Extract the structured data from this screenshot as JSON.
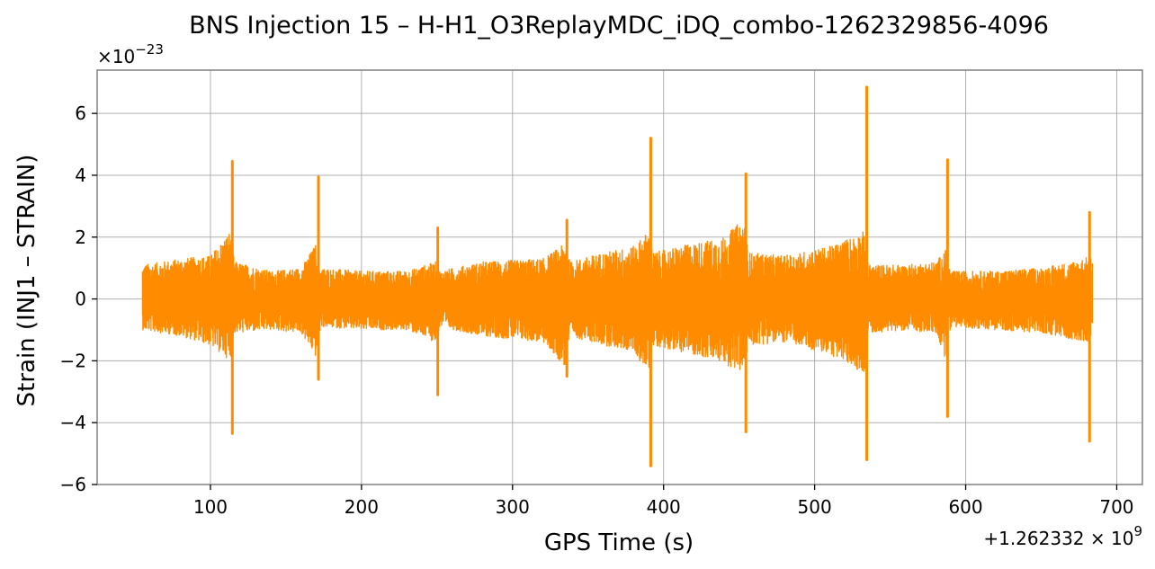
{
  "chart_data": {
    "type": "line",
    "title": "BNS Injection 15 – H-H1_O3ReplayMDC_iDQ_combo-1262329856-4096",
    "xlabel": "GPS Time (s)",
    "ylabel": "Strain (INJ1 – STRAIN)",
    "x_offset_base": "+1.262332",
    "x_offset_exp": "9",
    "y_scale_base": "×10",
    "y_scale_exp": "−23",
    "xlim": [
      25,
      717
    ],
    "ylim": [
      -6,
      7.4
    ],
    "grid": true,
    "x_ticks": [
      {
        "value": 100,
        "label": "100"
      },
      {
        "value": 200,
        "label": "200"
      },
      {
        "value": 300,
        "label": "300"
      },
      {
        "value": 400,
        "label": "400"
      },
      {
        "value": 500,
        "label": "500"
      },
      {
        "value": 600,
        "label": "600"
      },
      {
        "value": 700,
        "label": "700"
      }
    ],
    "y_ticks": [
      {
        "value": -6,
        "label": "−6"
      },
      {
        "value": -4,
        "label": "−4"
      },
      {
        "value": -2,
        "label": "−2"
      },
      {
        "value": 0,
        "label": "0"
      },
      {
        "value": 2,
        "label": "2"
      },
      {
        "value": 4,
        "label": "4"
      },
      {
        "value": 6,
        "label": "6"
      }
    ],
    "series": [
      {
        "color": "#ff8c00",
        "x_range": [
          55,
          684
        ],
        "noise_envelope": {
          "x": [
            55,
            80,
            100,
            113,
            116,
            140,
            160,
            170,
            173,
            200,
            230,
            249,
            252,
            280,
            320,
            335,
            338,
            360,
            380,
            390,
            393,
            420,
            440,
            453,
            456,
            480,
            510,
            533,
            536,
            560,
            580,
            587,
            590,
            620,
            650,
            670,
            684
          ],
          "upper": [
            1.1,
            1.3,
            1.4,
            2.2,
            1.2,
            0.9,
            1.0,
            1.8,
            1.0,
            0.9,
            0.9,
            1.2,
            0.9,
            1.2,
            1.3,
            1.8,
            1.2,
            1.5,
            1.7,
            2.2,
            1.5,
            1.8,
            2.0,
            2.6,
            1.5,
            1.4,
            1.7,
            2.2,
            1.1,
            1.1,
            1.2,
            1.6,
            0.9,
            0.9,
            1.0,
            1.2,
            1.4
          ],
          "lower": [
            -1.0,
            -1.2,
            -1.5,
            -2.0,
            -1.1,
            -1.0,
            -1.1,
            -1.9,
            -0.9,
            -1.0,
            -1.0,
            -1.4,
            -0.9,
            -1.2,
            -1.4,
            -2.2,
            -1.2,
            -1.5,
            -1.7,
            -2.4,
            -1.5,
            -1.8,
            -2.1,
            -2.4,
            -1.5,
            -1.4,
            -1.8,
            -2.4,
            -1.1,
            -1.0,
            -1.1,
            -2.0,
            -0.9,
            -1.0,
            -1.1,
            -1.3,
            -1.4
          ]
        },
        "spikes": [
          {
            "x": 114.5,
            "max": 4.45,
            "min": -4.35
          },
          {
            "x": 171.5,
            "max": 3.95,
            "min": -2.6
          },
          {
            "x": 250.5,
            "max": 2.3,
            "min": -3.1
          },
          {
            "x": 336,
            "max": 2.55,
            "min": -2.5
          },
          {
            "x": 391.5,
            "max": 5.2,
            "min": -5.4
          },
          {
            "x": 454.5,
            "max": 4.05,
            "min": -4.3
          },
          {
            "x": 534.5,
            "max": 6.85,
            "min": -5.2
          },
          {
            "x": 588,
            "max": 4.5,
            "min": -3.8
          },
          {
            "x": 682,
            "max": 2.8,
            "min": -4.6
          }
        ]
      }
    ]
  }
}
